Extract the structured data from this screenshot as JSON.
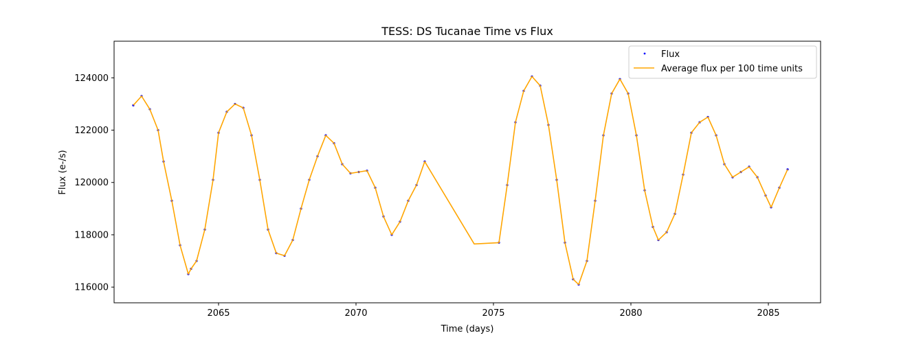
{
  "chart_data": {
    "type": "scatter",
    "title": "TESS: DS Tucanae Time vs Flux",
    "xlabel": "Time (days)",
    "ylabel": "Flux (e-/s)",
    "xlim": [
      2061.2,
      2086.9
    ],
    "ylim": [
      115400,
      125400
    ],
    "xticks": [
      {
        "value": 2065,
        "label": "2065"
      },
      {
        "value": 2070,
        "label": "2070"
      },
      {
        "value": 2075,
        "label": "2075"
      },
      {
        "value": 2080,
        "label": "2080"
      },
      {
        "value": 2085,
        "label": "2085"
      }
    ],
    "yticks": [
      {
        "value": 116000,
        "label": "116000"
      },
      {
        "value": 118000,
        "label": "118000"
      },
      {
        "value": 120000,
        "label": "120000"
      },
      {
        "value": 122000,
        "label": "122000"
      },
      {
        "value": 124000,
        "label": "124000"
      }
    ],
    "grid": false,
    "legend_position": "top-right",
    "series": [
      {
        "name": "Flux",
        "kind": "scatter",
        "color": "#0000ff",
        "x": [
          2061.9,
          2062.2,
          2062.5,
          2062.8,
          2063.0,
          2063.3,
          2063.6,
          2063.9,
          2064.0,
          2064.2,
          2064.5,
          2064.8,
          2065.0,
          2065.3,
          2065.6,
          2065.9,
          2066.2,
          2066.5,
          2066.8,
          2067.1,
          2067.4,
          2067.7,
          2068.0,
          2068.3,
          2068.6,
          2068.9,
          2069.2,
          2069.5,
          2069.8,
          2070.1,
          2070.4,
          2070.7,
          2071.0,
          2071.3,
          2071.6,
          2071.9,
          2072.2,
          2072.5,
          2075.2,
          2075.5,
          2075.8,
          2076.1,
          2076.4,
          2076.7,
          2077.0,
          2077.3,
          2077.6,
          2077.9,
          2078.1,
          2078.4,
          2078.7,
          2079.0,
          2079.3,
          2079.6,
          2079.9,
          2080.2,
          2080.5,
          2080.8,
          2081.0,
          2081.3,
          2081.6,
          2081.9,
          2082.2,
          2082.5,
          2082.8,
          2083.1,
          2083.4,
          2083.7,
          2084.0,
          2084.3,
          2084.6,
          2084.9,
          2085.1,
          2085.4,
          2085.7
        ],
        "y": [
          122950,
          123300,
          122800,
          122000,
          120800,
          119300,
          117600,
          116500,
          116700,
          117000,
          118200,
          120100,
          121900,
          122700,
          123000,
          122850,
          121800,
          120100,
          118200,
          117300,
          117200,
          117800,
          119000,
          120100,
          121000,
          121800,
          121500,
          120700,
          120350,
          120400,
          120450,
          119800,
          118700,
          118000,
          118500,
          119300,
          119900,
          120800,
          117700,
          119900,
          122300,
          123500,
          124050,
          123700,
          122200,
          120100,
          117700,
          116300,
          116100,
          117000,
          119300,
          121800,
          123400,
          123950,
          123400,
          121800,
          119700,
          118300,
          117800,
          118100,
          118800,
          120300,
          121900,
          122300,
          122500,
          121800,
          120700,
          120200,
          120400,
          120600,
          120200,
          119500,
          119050,
          119800,
          120500
        ]
      },
      {
        "name": "Average flux per 100 time units",
        "kind": "line",
        "color": "#ffa500",
        "x": [
          2061.9,
          2062.2,
          2062.5,
          2062.8,
          2063.0,
          2063.3,
          2063.6,
          2063.9,
          2064.0,
          2064.2,
          2064.5,
          2064.8,
          2065.0,
          2065.3,
          2065.6,
          2065.9,
          2066.2,
          2066.5,
          2066.8,
          2067.1,
          2067.4,
          2067.7,
          2068.0,
          2068.3,
          2068.6,
          2068.9,
          2069.2,
          2069.5,
          2069.8,
          2070.1,
          2070.4,
          2070.7,
          2071.0,
          2071.3,
          2071.6,
          2071.9,
          2072.2,
          2072.5,
          2074.3,
          2075.2,
          2075.5,
          2075.8,
          2076.1,
          2076.4,
          2076.7,
          2077.0,
          2077.3,
          2077.6,
          2077.9,
          2078.1,
          2078.4,
          2078.7,
          2079.0,
          2079.3,
          2079.6,
          2079.9,
          2080.2,
          2080.5,
          2080.8,
          2081.0,
          2081.3,
          2081.6,
          2081.9,
          2082.2,
          2082.5,
          2082.8,
          2083.1,
          2083.4,
          2083.7,
          2084.0,
          2084.3,
          2084.6,
          2084.9,
          2085.1,
          2085.4,
          2085.7
        ],
        "y": [
          122950,
          123300,
          122800,
          122000,
          120800,
          119300,
          117600,
          116500,
          116700,
          117000,
          118200,
          120100,
          121900,
          122700,
          123000,
          122850,
          121800,
          120100,
          118200,
          117300,
          117200,
          117800,
          119000,
          120100,
          121000,
          121800,
          121500,
          120700,
          120350,
          120400,
          120450,
          119800,
          118700,
          118000,
          118500,
          119300,
          119900,
          120800,
          117650,
          117700,
          119900,
          122300,
          123500,
          124050,
          123700,
          122200,
          120100,
          117700,
          116300,
          116100,
          117000,
          119300,
          121800,
          123400,
          123950,
          123400,
          121800,
          119700,
          118300,
          117800,
          118100,
          118800,
          120300,
          121900,
          122300,
          122500,
          121800,
          120700,
          120200,
          120400,
          120600,
          120200,
          119500,
          119050,
          119800,
          120500
        ]
      }
    ]
  }
}
